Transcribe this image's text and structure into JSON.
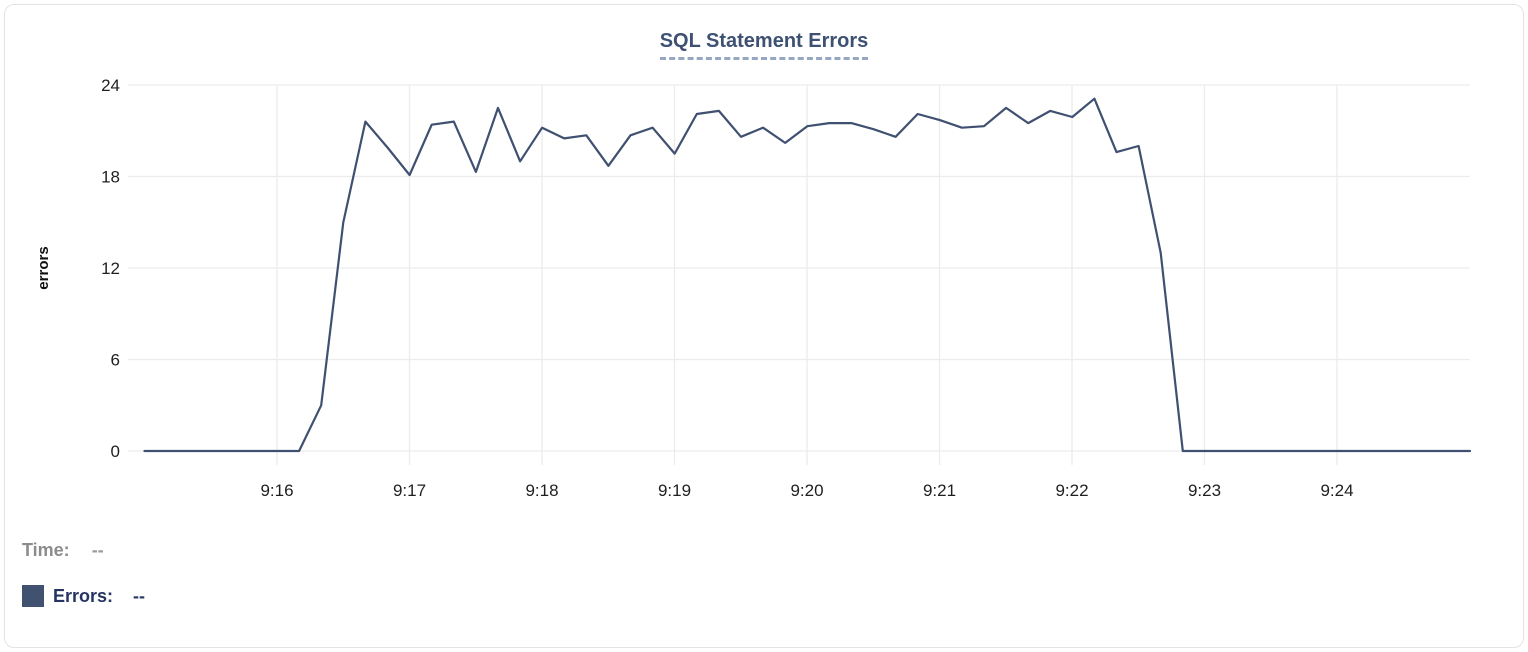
{
  "header": {
    "title": "SQL Statement Errors"
  },
  "legend": {
    "time_label": "Time:",
    "time_value": "--",
    "errors_label": "Errors:",
    "errors_value": "--",
    "series_swatch_color": "#415170"
  },
  "colors": {
    "line": "#3F5070",
    "grid": "#ececec",
    "title": "#3e5173",
    "card_border": "#e3e3e3"
  },
  "chart_data": {
    "type": "line",
    "title": "SQL Statement Errors",
    "xlabel": "",
    "ylabel": "errors",
    "ylim": [
      0,
      24
    ],
    "y_ticks": [
      0,
      6,
      12,
      18,
      24
    ],
    "x_ticks": [
      "9:16",
      "9:17",
      "9:18",
      "9:19",
      "9:20",
      "9:21",
      "9:22",
      "9:23",
      "9:24"
    ],
    "grid": true,
    "legend_position": "bottom-left",
    "series": [
      {
        "name": "Errors",
        "color": "#3F5070",
        "x": [
          "9:15:00",
          "9:15:10",
          "9:15:20",
          "9:15:30",
          "9:15:40",
          "9:15:50",
          "9:16:00",
          "9:16:10",
          "9:16:20",
          "9:16:30",
          "9:16:40",
          "9:16:50",
          "9:17:00",
          "9:17:10",
          "9:17:20",
          "9:17:30",
          "9:17:40",
          "9:17:50",
          "9:18:00",
          "9:18:10",
          "9:18:20",
          "9:18:30",
          "9:18:40",
          "9:18:50",
          "9:19:00",
          "9:19:10",
          "9:19:20",
          "9:19:30",
          "9:19:40",
          "9:19:50",
          "9:20:00",
          "9:20:10",
          "9:20:20",
          "9:20:30",
          "9:20:40",
          "9:20:50",
          "9:21:00",
          "9:21:10",
          "9:21:20",
          "9:21:30",
          "9:21:40",
          "9:21:50",
          "9:22:00",
          "9:22:10",
          "9:22:20",
          "9:22:30",
          "9:22:40",
          "9:22:50",
          "9:23:00",
          "9:23:10",
          "9:23:20",
          "9:23:30",
          "9:23:40",
          "9:23:50",
          "9:24:00",
          "9:24:10",
          "9:24:20",
          "9:24:30",
          "9:24:40",
          "9:24:50",
          "9:25:00"
        ],
        "values": [
          0,
          0,
          0,
          0,
          0,
          0,
          0,
          0,
          3,
          15,
          21.6,
          19.9,
          18.1,
          21.4,
          21.6,
          18.3,
          22.5,
          19,
          21.2,
          20.5,
          20.7,
          18.7,
          20.7,
          21.2,
          19.5,
          22.1,
          22.3,
          20.6,
          21.2,
          20.2,
          21.3,
          21.5,
          21.5,
          21.1,
          20.6,
          22.1,
          21.7,
          21.2,
          21.3,
          22.5,
          21.5,
          22.3,
          21.9,
          23.1,
          19.6,
          20,
          13,
          0,
          0,
          0,
          0,
          0,
          0,
          0,
          0,
          0,
          0,
          0,
          0,
          0,
          0
        ]
      }
    ]
  }
}
